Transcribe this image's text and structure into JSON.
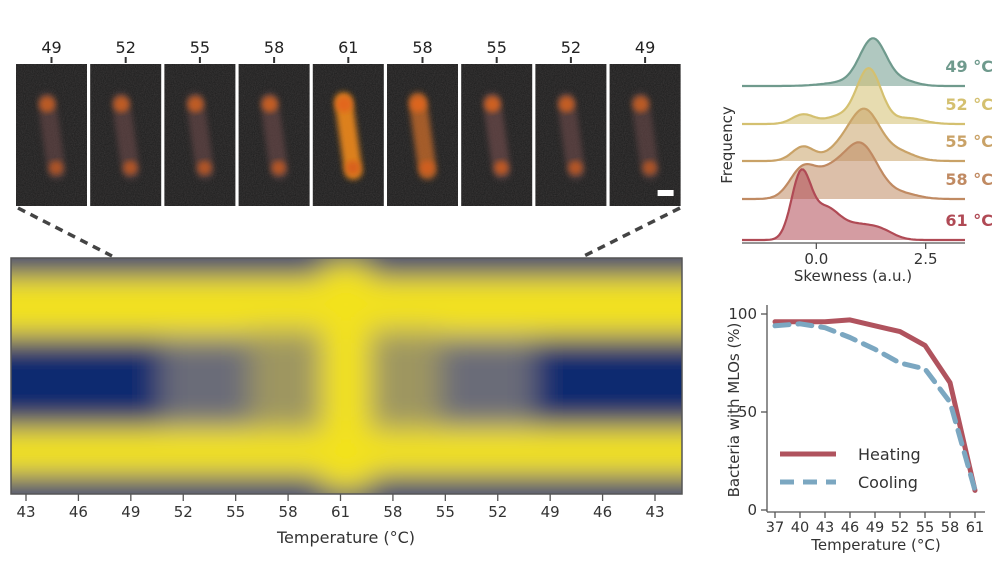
{
  "micrographs": {
    "labels": [
      "49",
      "52",
      "55",
      "58",
      "61",
      "58",
      "55",
      "52",
      "49"
    ],
    "brightness": [
      0.45,
      0.5,
      0.5,
      0.55,
      1.0,
      0.8,
      0.7,
      0.55,
      0.45
    ]
  },
  "kymograph": {
    "xlabel": "Temperature (°C)",
    "ticks": [
      "43",
      "46",
      "49",
      "52",
      "55",
      "58",
      "61",
      "58",
      "55",
      "52",
      "49",
      "46",
      "43"
    ],
    "colors": {
      "low": "#0a2a70",
      "high": "#f3e21c"
    }
  },
  "chart_data": [
    {
      "type": "area",
      "subtype": "ridgeline",
      "xlabel": "Skewness (a.u.)",
      "ylabel": "Frequency",
      "xlim": [
        -1.7,
        3.4
      ],
      "xticks": [
        "0.0",
        "2.5"
      ],
      "xtick_values": [
        0,
        2.5
      ],
      "series": [
        {
          "name": "49 °C",
          "color": "#6f9a8d",
          "peaks": [
            [
              1.3,
              0.95,
              0.3
            ],
            [
              0.7,
              0.08,
              0.5
            ],
            [
              2.0,
              0.1,
              0.3
            ]
          ]
        },
        {
          "name": "52 °C",
          "color": "#d4c070",
          "peaks": [
            [
              1.2,
              1.15,
              0.28
            ],
            [
              -0.3,
              0.2,
              0.25
            ],
            [
              0.5,
              0.15,
              0.3
            ],
            [
              2.1,
              0.12,
              0.35
            ]
          ]
        },
        {
          "name": "55 °C",
          "color": "#c9a267",
          "peaks": [
            [
              1.1,
              1.05,
              0.35
            ],
            [
              -0.3,
              0.3,
              0.25
            ],
            [
              0.5,
              0.2,
              0.3
            ],
            [
              1.9,
              0.18,
              0.35
            ]
          ]
        },
        {
          "name": "58 °C",
          "color": "#c08a62",
          "peaks": [
            [
              1.0,
              1.15,
              0.4
            ],
            [
              -0.3,
              0.65,
              0.3
            ],
            [
              0.3,
              0.4,
              0.3
            ],
            [
              2.0,
              0.1,
              0.35
            ]
          ]
        },
        {
          "name": "61 °C",
          "color": "#b04a55",
          "peaks": [
            [
              -0.35,
              1.35,
              0.22
            ],
            [
              0.2,
              0.6,
              0.3
            ],
            [
              0.9,
              0.3,
              0.4
            ],
            [
              1.5,
              0.15,
              0.3
            ]
          ]
        }
      ]
    },
    {
      "type": "line",
      "xlabel": "Temperature (°C)",
      "ylabel": "Bacteria with MLOs (%)",
      "categories": [
        "37",
        "40",
        "43",
        "46",
        "49",
        "52",
        "55",
        "58",
        "61"
      ],
      "ylim": [
        0,
        100
      ],
      "yticks": [
        "0",
        "50",
        "100"
      ],
      "ytick_values": [
        0,
        50,
        100
      ],
      "legend": "bottom-left",
      "series": [
        {
          "name": "Heating",
          "color": "#b0535e",
          "dash": "solid",
          "values": [
            96,
            96,
            96,
            97,
            94,
            91,
            84,
            65,
            10
          ]
        },
        {
          "name": "Cooling",
          "color": "#7ba7c1",
          "dash": "dashed",
          "values": [
            94,
            95,
            93,
            88,
            82,
            75,
            72,
            55,
            10
          ]
        }
      ]
    }
  ]
}
